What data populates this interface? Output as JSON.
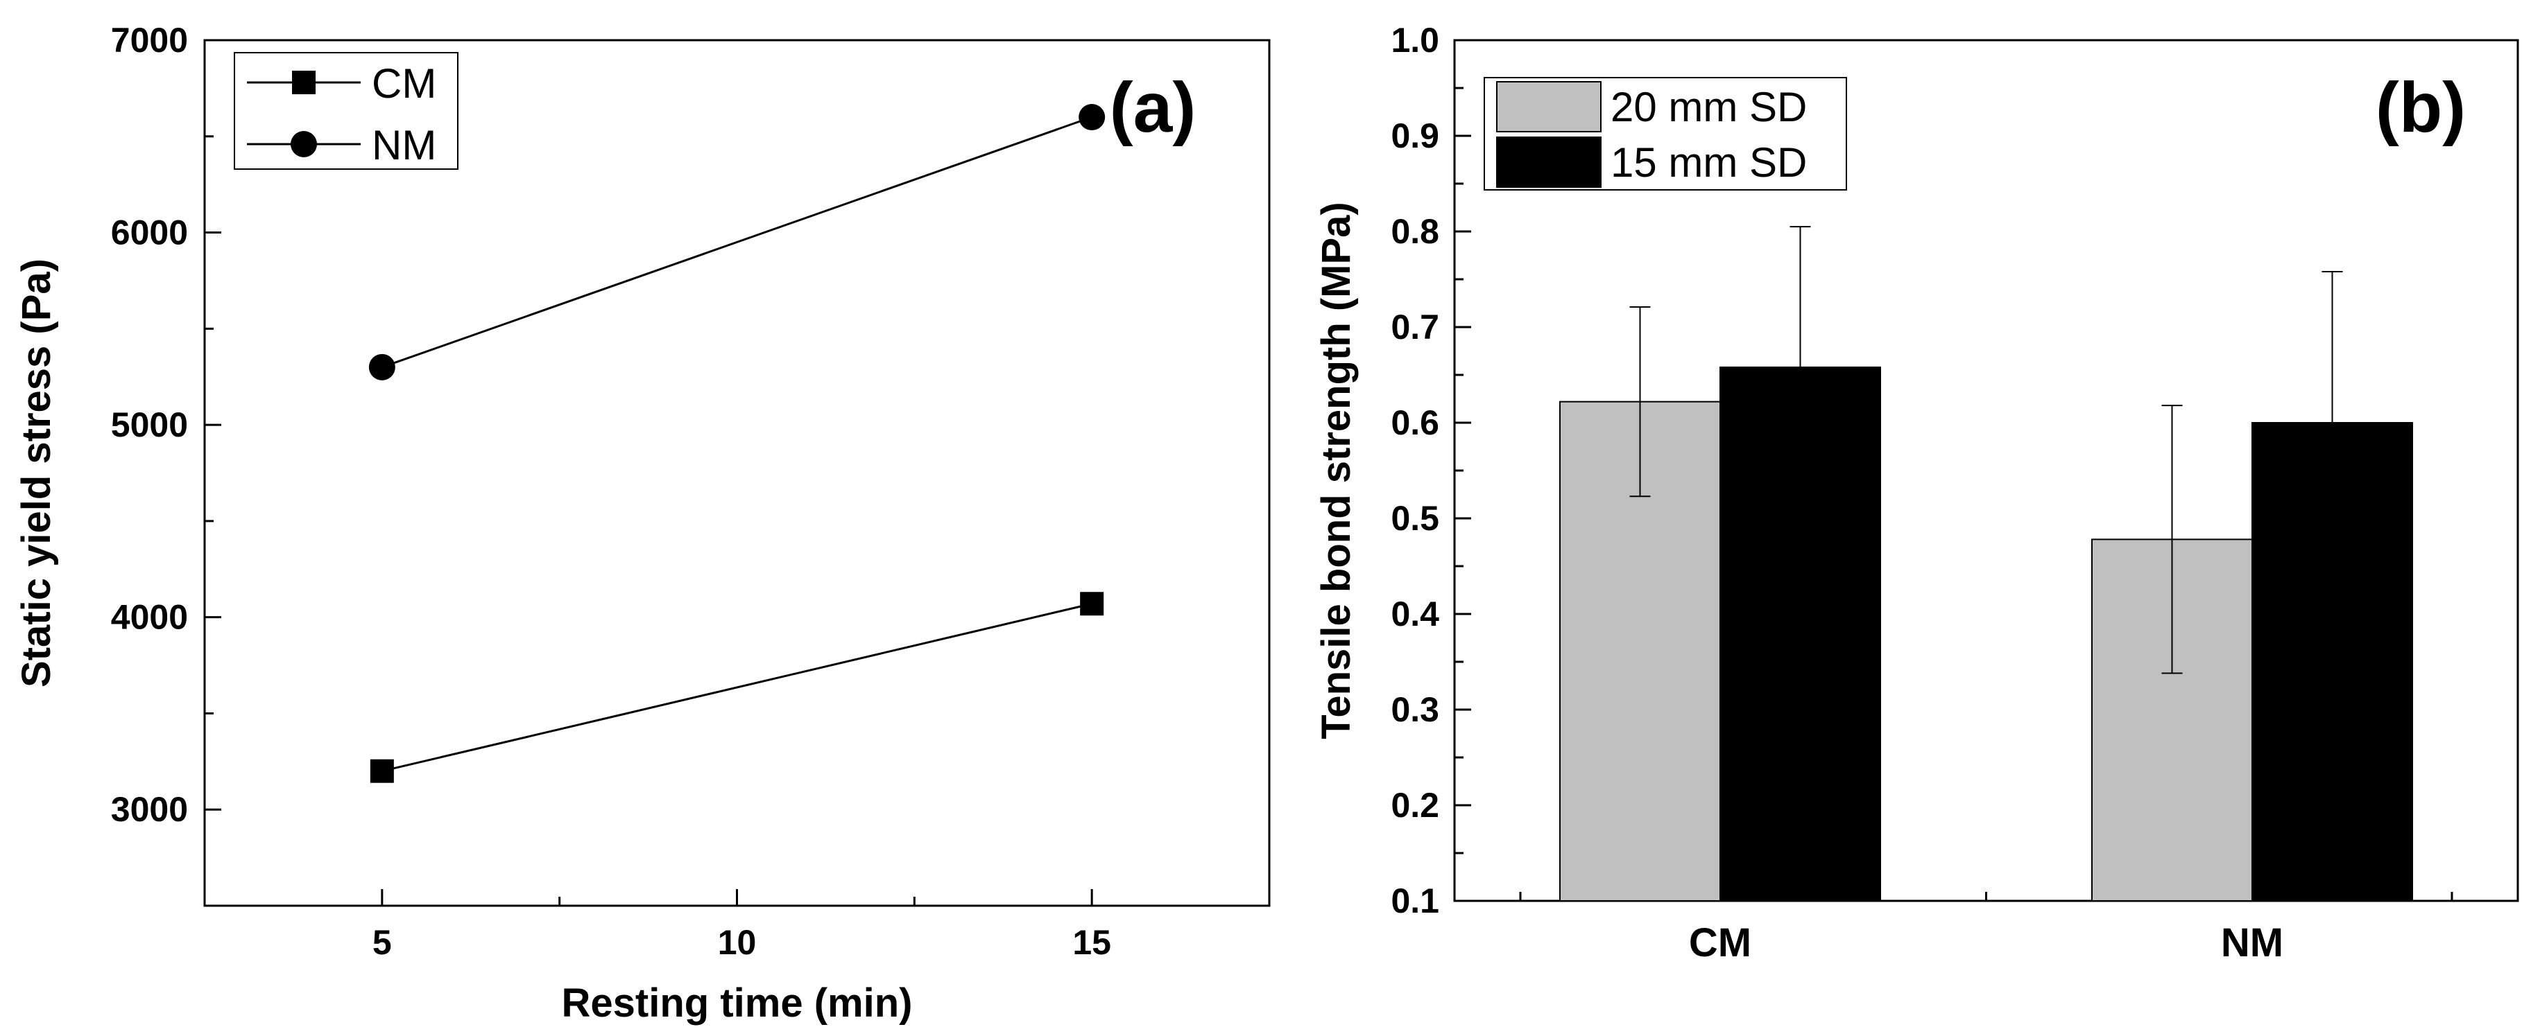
{
  "chart_data": [
    {
      "type": "line",
      "panel_label": "(a)",
      "xlabel": "Resting time (min)",
      "ylabel": "Static yield stress (Pa)",
      "xlim": [
        2.5,
        17.5
      ],
      "ylim": [
        2500,
        7000
      ],
      "xticks": [
        5,
        10,
        15
      ],
      "yticks": [
        3000,
        4000,
        5000,
        6000,
        7000
      ],
      "series": [
        {
          "name": "CM",
          "marker": "square",
          "x": [
            5,
            15
          ],
          "values": [
            3200,
            4070
          ]
        },
        {
          "name": "NM",
          "marker": "circle",
          "x": [
            5,
            15
          ],
          "values": [
            5300,
            6600
          ]
        }
      ],
      "legend": {
        "position": "top-left",
        "entries": [
          "CM",
          "NM"
        ]
      }
    },
    {
      "type": "bar",
      "panel_label": "(b)",
      "xlabel": "",
      "ylabel": "Tensile bond strength (MPa)",
      "ylim": [
        0.1,
        1.0
      ],
      "yticks": [
        "0.1",
        "0.2",
        "0.3",
        "0.4",
        "0.5",
        "0.6",
        "0.7",
        "0.8",
        "0.9",
        "1.0"
      ],
      "categories": [
        "CM",
        "NM"
      ],
      "series": [
        {
          "name": "20 mm SD",
          "color": "#c0c0c0",
          "values": [
            0.622,
            0.478
          ],
          "errors": [
            0.099,
            0.14
          ]
        },
        {
          "name": "15 mm SD",
          "color": "#000000",
          "values": [
            0.658,
            0.6
          ],
          "errors": [
            0.147,
            0.158
          ]
        }
      ],
      "legend": {
        "position": "top-left",
        "entries": [
          "20 mm SD",
          "15 mm SD"
        ]
      }
    }
  ]
}
